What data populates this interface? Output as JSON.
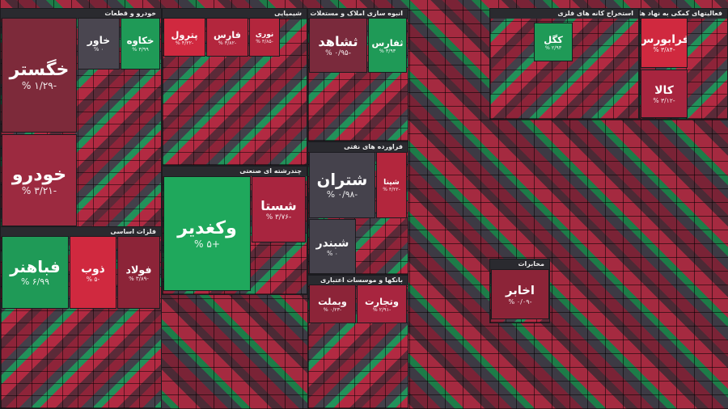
{
  "sectors": [
    {
      "title": "خودرو و قطعات",
      "tiles": [
        {
          "name": "خگستر",
          "change": "-۱/۲۹ %",
          "color": "#7d2a3a"
        },
        {
          "name": "خودرو",
          "change": "-۳/۲۱ %",
          "color": "#9c2a40"
        },
        {
          "name": "خاور",
          "change": "۰ %",
          "color": "#4a4650"
        },
        {
          "name": "خکاوه",
          "change": "۳/۹۹ %",
          "color": "#1f9a57"
        }
      ]
    },
    {
      "title": "فلزات اساسی",
      "tiles": [
        {
          "name": "فباهنر",
          "change": "۶/۹۹ %",
          "color": "#1f9a57"
        },
        {
          "name": "ذوب",
          "change": "-۵ %",
          "color": "#d0293f"
        },
        {
          "name": "فولاد",
          "change": "-۳/۸۹ %",
          "color": "#8c2438"
        }
      ]
    },
    {
      "title": "شیمیایی",
      "tiles": [
        {
          "name": "پترول",
          "change": "-۴/۲۲ %",
          "color": "#d0293f"
        },
        {
          "name": "فارس",
          "change": "-۳/۸۲ %",
          "color": "#b3263d"
        },
        {
          "name": "نوری",
          "change": "-۳/۸۵ %",
          "color": "#b3263d"
        }
      ]
    },
    {
      "title": "چندرشته ای صنعتی",
      "tiles": [
        {
          "name": "وکغدیر",
          "change": "+۵ %",
          "color": "#1fa85c"
        },
        {
          "name": "شستا",
          "change": "-۳/۷۶ %",
          "color": "#a8253f"
        }
      ]
    },
    {
      "title": "انبوه سازی املاک و مستغلات",
      "tiles": [
        {
          "name": "ثشاهد",
          "change": "-۰/۹۵ %",
          "color": "#7a2a3c"
        },
        {
          "name": "ثفارس",
          "change": "۳/۹۳ %",
          "color": "#1f9a57"
        }
      ]
    },
    {
      "title": "فراورده های نفتی",
      "tiles": [
        {
          "name": "شتران",
          "change": "-۰/۹۸ %",
          "color": "#45424c"
        },
        {
          "name": "شپنا",
          "change": "-۳/۲۲ %",
          "color": "#b3263d"
        },
        {
          "name": "شبندر",
          "change": "۰ %",
          "color": "#45424c"
        }
      ]
    },
    {
      "title": "بانکها و موسسات اعتباری",
      "tiles": [
        {
          "name": "وبملت",
          "change": "-۰/۲۳ %",
          "color": "#8c2438"
        },
        {
          "name": "وتجارت",
          "change": "-۲/۹۱ %",
          "color": "#a8253f"
        }
      ]
    },
    {
      "title": "استخراج کانه های فلزی",
      "tiles": [
        {
          "name": "کگل",
          "change": "۲/۹۳ %",
          "color": "#1f9a57"
        }
      ]
    },
    {
      "title": "فعالیتهای کمکی به نهاد های مالی واسط",
      "tiles": [
        {
          "name": "فرابورس",
          "change": "-۳/۸۴ %",
          "color": "#d0293f"
        },
        {
          "name": "کالا",
          "change": "-۳/۱۲ %",
          "color": "#a8253f"
        }
      ]
    },
    {
      "title": "مخابرات",
      "tiles": [
        {
          "name": "اخابر",
          "change": "-۰/۰۹ %",
          "color": "#8c2438"
        }
      ]
    }
  ]
}
